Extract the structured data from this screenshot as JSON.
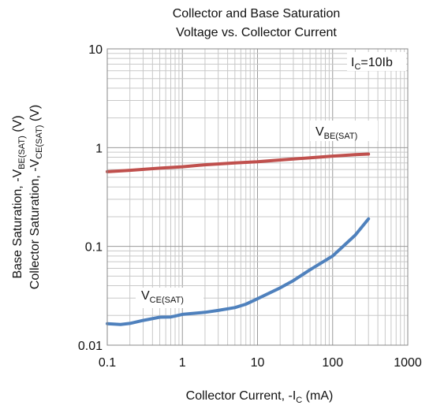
{
  "chart_data": {
    "type": "line",
    "title": [
      "Collector and Base Saturation",
      "Voltage vs. Collector Current"
    ],
    "xlabel": {
      "main": "Collector Current, -I",
      "sub": "C",
      "unit": " (mA)"
    },
    "ylabel": {
      "line1": {
        "main": "Base Saturation, -V",
        "sub": "BE(SAT)",
        "unit": " (V)"
      },
      "line2": {
        "main": "Collector Saturation, -V",
        "sub": "CE(SAT)",
        "unit": " (V)"
      }
    },
    "x_scale": "log",
    "y_scale": "log",
    "xlim": [
      0.1,
      1000
    ],
    "ylim": [
      0.01,
      10
    ],
    "x_ticks": [
      {
        "value": 0.1,
        "label": "0.1"
      },
      {
        "value": 1,
        "label": "1"
      },
      {
        "value": 10,
        "label": "10"
      },
      {
        "value": 100,
        "label": "100"
      },
      {
        "value": 1000,
        "label": "1000"
      }
    ],
    "y_ticks": [
      {
        "value": 0.01,
        "label": "0.01"
      },
      {
        "value": 0.1,
        "label": "0.1"
      },
      {
        "value": 1,
        "label": "1"
      },
      {
        "value": 10,
        "label": "10"
      }
    ],
    "grid": true,
    "annotation_top_right": {
      "main": "I",
      "sub": "C",
      "rest": "=10Ib"
    },
    "series": [
      {
        "name": {
          "main": "V",
          "sub": "BE(SAT)"
        },
        "color": "#c0504d",
        "x": [
          0.1,
          0.2,
          0.5,
          1,
          2,
          5,
          10,
          20,
          50,
          100,
          200,
          300
        ],
        "y": [
          0.57,
          0.59,
          0.62,
          0.64,
          0.67,
          0.7,
          0.72,
          0.75,
          0.79,
          0.82,
          0.85,
          0.86
        ]
      },
      {
        "name": {
          "main": "V",
          "sub": "CE(SAT)"
        },
        "color": "#4f81bd",
        "x": [
          0.1,
          0.15,
          0.2,
          0.3,
          0.5,
          0.7,
          0.8,
          1,
          2,
          3,
          5,
          7,
          10,
          20,
          30,
          50,
          100,
          200,
          300
        ],
        "y": [
          0.0165,
          0.0162,
          0.0166,
          0.0178,
          0.0192,
          0.0193,
          0.0197,
          0.0205,
          0.0215,
          0.0225,
          0.024,
          0.026,
          0.0295,
          0.038,
          0.045,
          0.058,
          0.08,
          0.13,
          0.19
        ]
      }
    ]
  }
}
